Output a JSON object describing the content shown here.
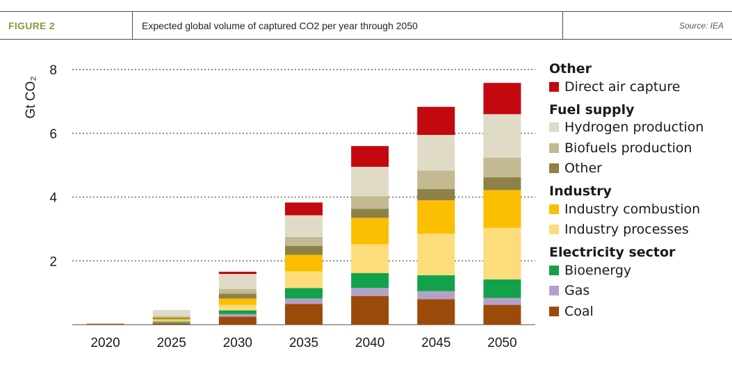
{
  "header": {
    "figure_label": "FIGURE 2",
    "title": "Expected global volume of captured CO2 per year through 2050",
    "source": "Source: IEA"
  },
  "chart_data": {
    "type": "bar",
    "stacked": true,
    "categories": [
      "2020",
      "2025",
      "2030",
      "2035",
      "2040",
      "2045",
      "2050"
    ],
    "ylabel": "Gt CO₂",
    "ylim": [
      0,
      8
    ],
    "yticks": [
      "2",
      "4",
      "6",
      "8"
    ],
    "grid": "dotted horizontal",
    "legend_placement": "right",
    "series": [
      {
        "name": "Coal",
        "group": "Electricity sector",
        "color": "#9c4a0a",
        "values": [
          0.03,
          0.05,
          0.25,
          0.65,
          0.9,
          0.8,
          0.62
        ]
      },
      {
        "name": "Gas",
        "group": "Electricity sector",
        "color": "#b3a2c8",
        "values": [
          0.0,
          0.02,
          0.08,
          0.17,
          0.25,
          0.25,
          0.22
        ]
      },
      {
        "name": "Bioenergy",
        "group": "Electricity sector",
        "color": "#13a14b",
        "values": [
          0.0,
          0.03,
          0.12,
          0.33,
          0.47,
          0.5,
          0.58
        ]
      },
      {
        "name": "Industry processes",
        "group": "Industry",
        "color": "#fddd7b",
        "values": [
          0.0,
          0.04,
          0.17,
          0.52,
          0.9,
          1.3,
          1.62
        ]
      },
      {
        "name": "Industry combustion",
        "group": "Industry",
        "color": "#fcbe00",
        "values": [
          0.0,
          0.04,
          0.2,
          0.52,
          0.83,
          1.05,
          1.18
        ]
      },
      {
        "name": "Other",
        "group": "Fuel supply",
        "color": "#8d8147",
        "values": [
          0.0,
          0.04,
          0.15,
          0.28,
          0.28,
          0.35,
          0.4
        ]
      },
      {
        "name": "Biofuels production",
        "group": "Fuel supply",
        "color": "#c3b992",
        "values": [
          0.0,
          0.04,
          0.15,
          0.28,
          0.4,
          0.58,
          0.62
        ]
      },
      {
        "name": "Hydrogen production",
        "group": "Fuel supply",
        "color": "#e0dbc7",
        "values": [
          0.0,
          0.2,
          0.47,
          0.68,
          0.92,
          1.12,
          1.36
        ]
      },
      {
        "name": "Direct air capture",
        "group": "Other",
        "color": "#c3090f",
        "values": [
          0.0,
          0.0,
          0.07,
          0.4,
          0.65,
          0.88,
          0.98
        ]
      }
    ]
  },
  "legend": [
    {
      "group": "Other",
      "items": [
        {
          "label": "Direct air capture",
          "color": "#c3090f"
        }
      ]
    },
    {
      "group": "Fuel supply",
      "items": [
        {
          "label": "Hydrogen production",
          "color": "#e0dbc7"
        },
        {
          "label": "Biofuels production",
          "color": "#c3b992"
        },
        {
          "label": "Other",
          "color": "#8d8147"
        }
      ]
    },
    {
      "group": "Industry",
      "items": [
        {
          "label": "Industry combustion",
          "color": "#fcbe00"
        },
        {
          "label": "Industry processes",
          "color": "#fddd7b"
        }
      ]
    },
    {
      "group": "Electricity sector",
      "items": [
        {
          "label": "Bioenergy",
          "color": "#13a14b"
        },
        {
          "label": "Gas",
          "color": "#b3a2c8"
        },
        {
          "label": "Coal",
          "color": "#9c4a0a"
        }
      ]
    }
  ]
}
